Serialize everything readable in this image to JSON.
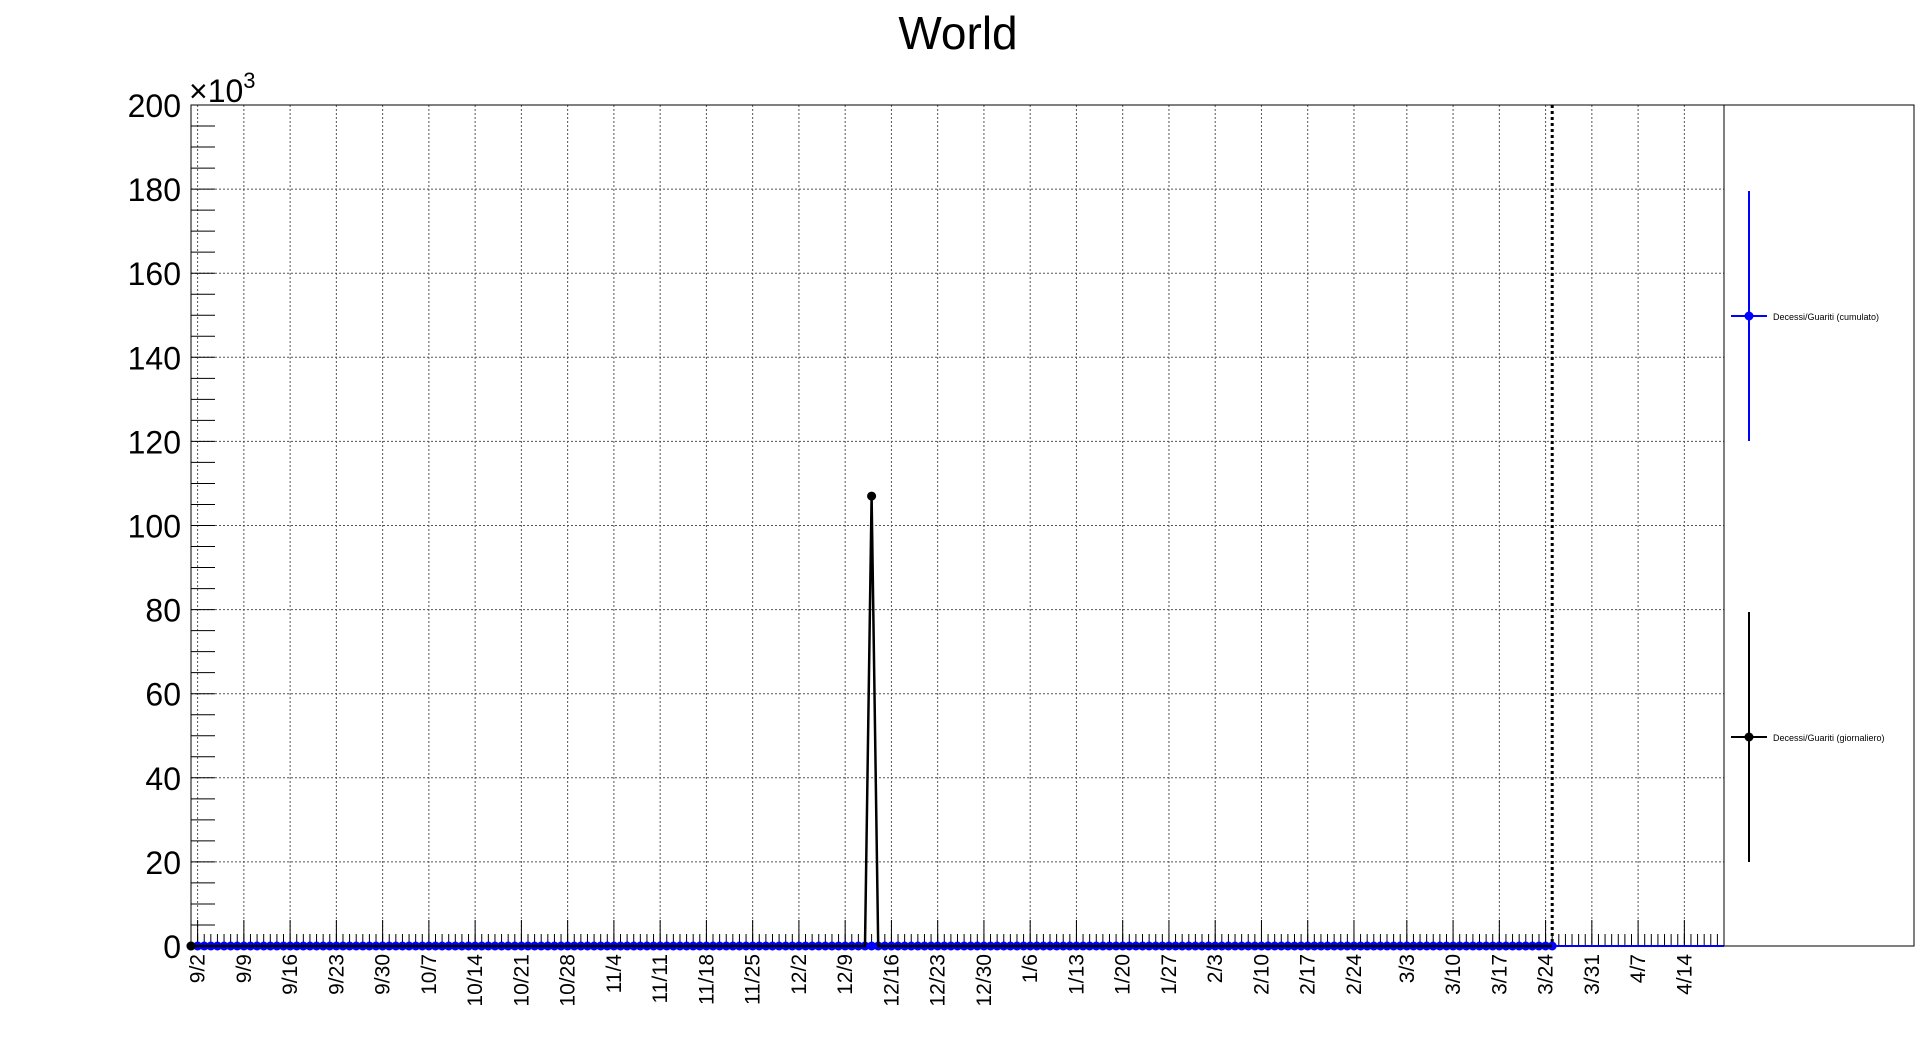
{
  "chart_data": {
    "type": "line",
    "title": "World",
    "exponent_label": "×10",
    "exponent_power": "3",
    "ylim": [
      0,
      200
    ],
    "yticks": [
      0,
      20,
      40,
      60,
      80,
      100,
      120,
      140,
      160,
      180,
      200
    ],
    "y_minor_step": 5,
    "xlim": [
      "9/1",
      "4/20"
    ],
    "x_start_date": "2019-09-01",
    "x_end_date": "2020-04-20",
    "xticks": [
      "9/2",
      "9/9",
      "9/16",
      "9/23",
      "9/30",
      "10/7",
      "10/14",
      "10/21",
      "10/28",
      "11/4",
      "11/11",
      "11/18",
      "11/25",
      "12/2",
      "12/9",
      "12/16",
      "12/23",
      "12/30",
      "1/6",
      "1/13",
      "1/20",
      "1/27",
      "2/3",
      "2/10",
      "2/17",
      "2/24",
      "3/3",
      "3/10",
      "3/17",
      "3/24",
      "3/31",
      "4/7",
      "4/14"
    ],
    "grid": true,
    "vertical_marker": "3/25",
    "legend_position": "right",
    "series": [
      {
        "name": "Decessi/Guariti (cumulato)",
        "color": "#0000ff",
        "start": "9/1",
        "end": "3/25",
        "constant_value": 0,
        "extends_to": "4/20"
      },
      {
        "name": "Decessi/Guariti (giornaliero)",
        "color": "#000000",
        "start": "9/1",
        "end": "3/25",
        "baseline_value": 0,
        "spike": {
          "date": "12/13",
          "value": 107
        }
      }
    ]
  }
}
